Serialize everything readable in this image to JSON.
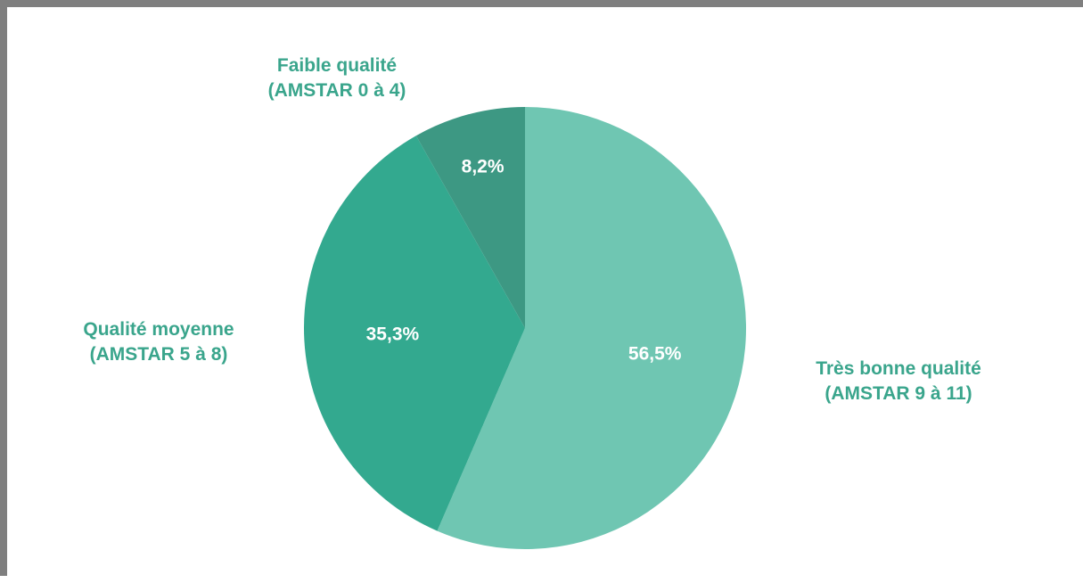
{
  "chart_data": {
    "type": "pie",
    "title": "",
    "slices": [
      {
        "label_line1": "Très bonne qualité",
        "label_line2": "(AMSTAR 9 à 11)",
        "value": 56.5,
        "value_label": "56,5%",
        "color": "#6fc6b2"
      },
      {
        "label_line1": "Qualité moyenne",
        "label_line2": "(AMSTAR 5 à 8)",
        "value": 35.3,
        "value_label": "35,3%",
        "color": "#33a98f"
      },
      {
        "label_line1": "Faible qualité",
        "label_line2": "(AMSTAR 0 à 4)",
        "value": 8.2,
        "value_label": "8,2%",
        "color": "#3d9883"
      }
    ],
    "start_angle_deg": 0,
    "direction": "clockwise"
  },
  "colors": {
    "label_text": "#3aa58c",
    "frame": "#7f7f7f",
    "background": "#ffffff"
  }
}
